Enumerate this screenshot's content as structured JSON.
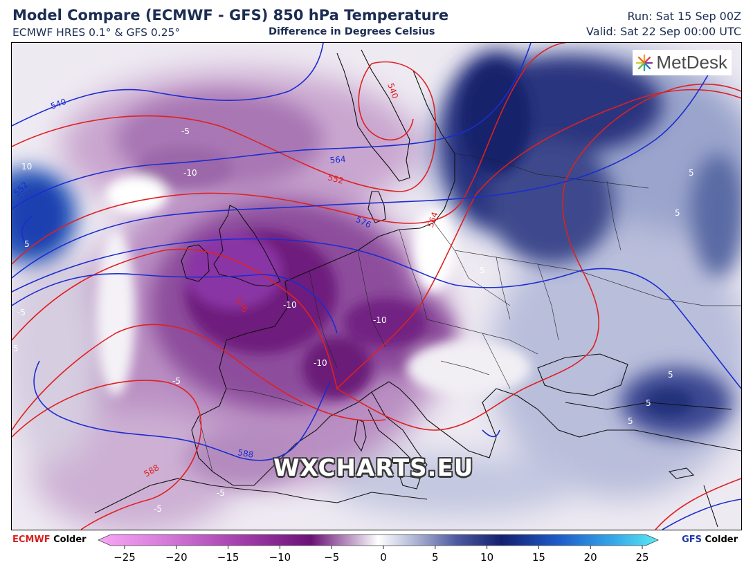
{
  "header": {
    "title": "Model Compare (ECMWF - GFS) 850 hPa Temperature",
    "models": "ECMWF HRES 0.1° & GFS 0.25°",
    "difference": "Difference in Degrees Celsius",
    "run": "Run: Sat 15 Sep 00Z",
    "valid": "Valid: Sat 22 Sep 00:00 UTC"
  },
  "logo": {
    "text": "MetDesk"
  },
  "watermark": "WXCHARTS.EU",
  "map": {
    "labels_diff": [
      "-5",
      "-10",
      "-10",
      "-10",
      "-10",
      "-10",
      "-5",
      "-5",
      "-5",
      "-5",
      "5",
      "5",
      "5",
      "5",
      "5",
      "5",
      "5",
      "5",
      "10"
    ],
    "labels_ecmwf_height": [
      "540",
      "552",
      "564",
      "576",
      "588"
    ],
    "labels_gfs_height": [
      "540",
      "552",
      "564",
      "576",
      "588"
    ]
  },
  "colorbar": {
    "left_model": "ECMWF",
    "left_text": "Colder",
    "right_model": "GFS",
    "right_text": "Colder",
    "ticks": [
      "−25",
      "−20",
      "−15",
      "−10",
      "−5",
      "0",
      "5",
      "10",
      "15",
      "20",
      "25"
    ],
    "range": [
      -25,
      25
    ],
    "colors": {
      "neg_max": "#ee88ee",
      "neg_mid": "#8a2c8e",
      "neg_dark": "#5a0a5e",
      "zero": "#ffffff",
      "pos_mid": "#5060a8",
      "pos_dark": "#10186a",
      "pos_max": "#50e0f0",
      "ecmwf_line": "#e02020",
      "gfs_line": "#1a2cd0"
    }
  }
}
